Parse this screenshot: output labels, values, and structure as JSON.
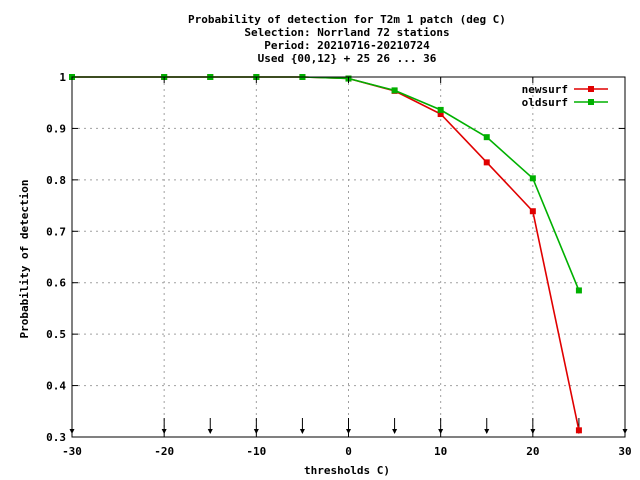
{
  "chart_data": {
    "type": "line",
    "title_lines": [
      "Probability of detection  for T2m 1 patch (deg C)",
      "Selection: Norrland     72 stations",
      "Period: 20210716-20210724",
      "Used {00,12} + 25 26 ... 36"
    ],
    "xlabel": "thresholds C)",
    "ylabel": "Probability of detection",
    "xlim": [
      -30,
      30
    ],
    "ylim": [
      0.3,
      1.0
    ],
    "xticks": [
      -30,
      -20,
      -10,
      0,
      10,
      20,
      30
    ],
    "xtick_labels": [
      "-30",
      "-20",
      "-10",
      "0",
      "10",
      "20",
      "30"
    ],
    "yticks": [
      0.3,
      0.4,
      0.5,
      0.6,
      0.7,
      0.8,
      0.9,
      1.0
    ],
    "ytick_labels": [
      "0.3",
      "0.4",
      "0.5",
      "0.6",
      "0.7",
      "0.8",
      "0.9",
      "1"
    ],
    "grid": true,
    "legend_position": "top-right",
    "arrow_x": [
      -30,
      -20,
      -15,
      -10,
      -5,
      0,
      5,
      10,
      15,
      20,
      25,
      30
    ],
    "series": [
      {
        "name": "newsurf",
        "color": "#e00000",
        "x": [
          -30,
          -20,
          -15,
          -10,
          -5,
          0,
          5,
          10,
          15,
          20,
          25
        ],
        "y": [
          1.0,
          1.0,
          1.0,
          1.0,
          1.0,
          0.997,
          0.973,
          0.928,
          0.834,
          0.739,
          0.313
        ]
      },
      {
        "name": "oldsurf",
        "color": "#00b000",
        "x": [
          -30,
          -20,
          -15,
          -10,
          -5,
          0,
          5,
          10,
          15,
          20,
          25
        ],
        "y": [
          1.0,
          1.0,
          1.0,
          1.0,
          1.0,
          0.997,
          0.974,
          0.936,
          0.883,
          0.803,
          0.585
        ]
      }
    ]
  }
}
